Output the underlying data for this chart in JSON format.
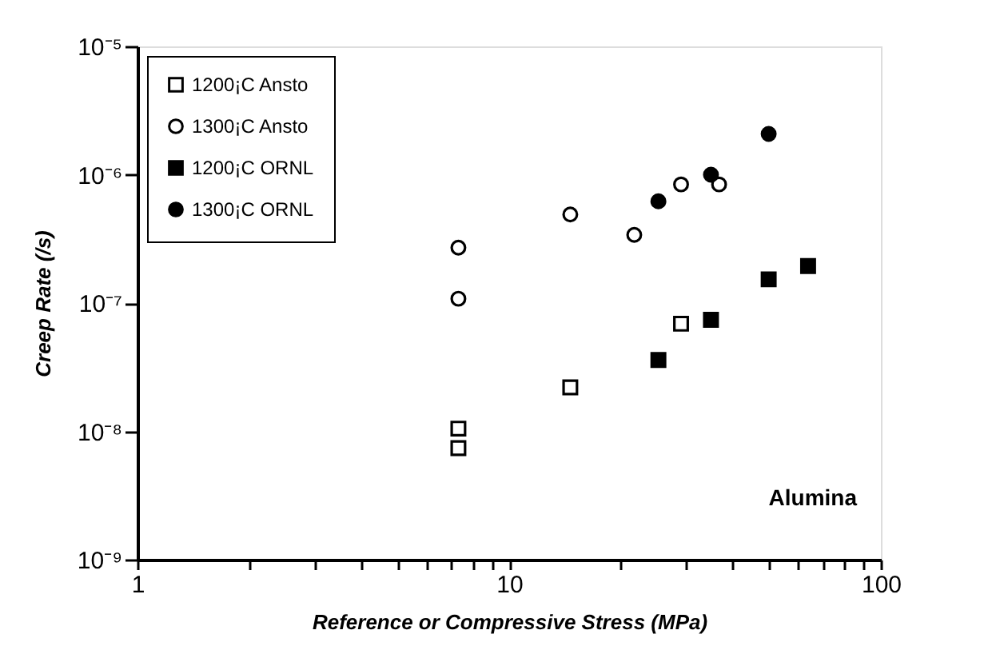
{
  "chart_data": {
    "type": "scatter",
    "xlabel": "Reference  or  Compressive  Stress  (MPa)",
    "ylabel": "Creep  Rate  (/s)",
    "annotations": [
      "Alumina"
    ],
    "log": "xy",
    "xlim": [
      1,
      100
    ],
    "xticks": [
      1,
      {
        "value": 2,
        "label": null
      },
      {
        "value": 3,
        "label": null
      },
      {
        "value": 4,
        "label": null
      },
      {
        "value": 5,
        "label": null
      },
      {
        "value": 6,
        "label": null
      },
      {
        "value": 7,
        "label": null
      },
      {
        "value": 8,
        "label": null
      },
      {
        "value": 9,
        "label": null
      },
      10,
      {
        "value": 20,
        "label": null
      },
      {
        "value": 30,
        "label": null
      },
      {
        "value": 40,
        "label": null
      },
      {
        "value": 50,
        "label": null
      },
      {
        "value": 60,
        "label": null
      },
      {
        "value": 70,
        "label": null
      },
      {
        "value": 80,
        "label": null
      },
      {
        "value": 90,
        "label": null
      },
      100
    ],
    "ylim": [
      1e-09,
      1e-05
    ],
    "yticks": [
      {
        "value": 1e-09,
        "label": "10⁻⁹"
      },
      {
        "value": 1e-08,
        "label": "10⁻⁸"
      },
      {
        "value": 1e-07,
        "label": "10⁻⁷"
      },
      {
        "value": 1e-06,
        "label": "10⁻⁶"
      },
      {
        "value": 1e-05,
        "label": "10⁻⁵"
      }
    ],
    "grid": false,
    "legend": "top left",
    "series": [
      {
        "name": "1200¡C Ansto",
        "color": "#ffffff",
        "marker": "square",
        "x": [
          7.3,
          7.3,
          14.6,
          29
        ],
        "values": [
          1.05e-08,
          7.4e-09,
          2.2e-08,
          6.9e-08
        ]
      },
      {
        "name": "1300¡C Ansto",
        "color": "#ffffff",
        "marker": "circle",
        "x": [
          7.3,
          7.3,
          14.6,
          21.7,
          29,
          36.7
        ],
        "values": [
          2.7e-07,
          1.08e-07,
          4.9e-07,
          3.4e-07,
          8.4e-07,
          8.4e-07
        ]
      },
      {
        "name": "1200¡C ORNL",
        "color": "#000000",
        "marker": "square",
        "x": [
          25.2,
          34.9,
          49.9,
          63.7
        ],
        "values": [
          3.6e-08,
          7.4e-08,
          1.53e-07,
          1.94e-07
        ]
      },
      {
        "name": "1300¡C ORNL",
        "color": "#000000",
        "marker": "circle",
        "x": [
          25.2,
          34.9,
          49.9
        ],
        "values": [
          6.2e-07,
          1e-06,
          2.08e-06
        ]
      }
    ]
  }
}
